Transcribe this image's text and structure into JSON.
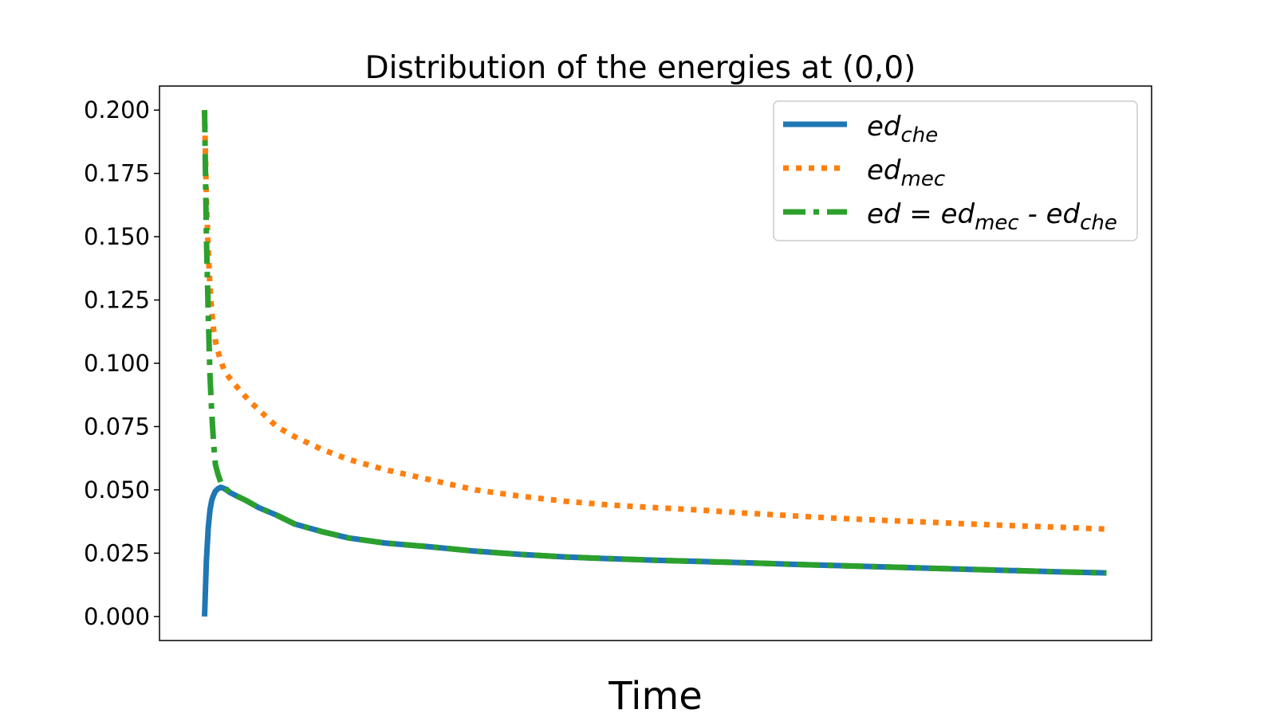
{
  "chart_data": {
    "type": "line",
    "title": "Distribution of the energies at (0,0)",
    "xlabel": "Time",
    "ylabel": "",
    "xlim": [
      -0.05,
      1.05
    ],
    "ylim": [
      -0.0095,
      0.2095
    ],
    "y_ticks": [
      0.0,
      0.025,
      0.05,
      0.075,
      0.1,
      0.125,
      0.15,
      0.175,
      0.2
    ],
    "y_tick_labels": [
      "0.000",
      "0.025",
      "0.050",
      "0.075",
      "0.100",
      "0.125",
      "0.150",
      "0.175",
      "0.200"
    ],
    "x_tick_labels": [],
    "grid": false,
    "legend_position": "top-right",
    "series": [
      {
        "name": "ed_che",
        "label_main": "ed",
        "label_sub": "che",
        "color": "#1f77b4",
        "style": "solid",
        "x": [
          0.0,
          0.002,
          0.004,
          0.006,
          0.008,
          0.01,
          0.012,
          0.015,
          0.018,
          0.022,
          0.028,
          0.036,
          0.045,
          0.06,
          0.08,
          0.1,
          0.13,
          0.16,
          0.2,
          0.25,
          0.3,
          0.35,
          0.4,
          0.45,
          0.5,
          0.55,
          0.6,
          0.65,
          0.7,
          0.75,
          0.8,
          0.85,
          0.9,
          0.95,
          1.0
        ],
        "y": [
          0.0,
          0.022,
          0.035,
          0.042,
          0.046,
          0.048,
          0.0495,
          0.0505,
          0.051,
          0.0505,
          0.049,
          0.0475,
          0.046,
          0.043,
          0.04,
          0.0365,
          0.0335,
          0.031,
          0.029,
          0.0275,
          0.0258,
          0.0245,
          0.0235,
          0.0228,
          0.0222,
          0.0217,
          0.0212,
          0.0206,
          0.0201,
          0.0196,
          0.0191,
          0.0186,
          0.0181,
          0.0176,
          0.0172
        ]
      },
      {
        "name": "ed_mec",
        "label_main": "ed",
        "label_sub": "mec",
        "color": "#ff7f0e",
        "style": "dotted",
        "x": [
          0.0,
          0.002,
          0.004,
          0.006,
          0.008,
          0.01,
          0.013,
          0.017,
          0.022,
          0.03,
          0.04,
          0.05,
          0.065,
          0.08,
          0.1,
          0.13,
          0.16,
          0.2,
          0.25,
          0.3,
          0.35,
          0.4,
          0.45,
          0.5,
          0.55,
          0.6,
          0.65,
          0.7,
          0.75,
          0.8,
          0.85,
          0.9,
          0.95,
          1.0
        ],
        "y": [
          0.2,
          0.165,
          0.145,
          0.13,
          0.12,
          0.113,
          0.107,
          0.102,
          0.097,
          0.093,
          0.089,
          0.085,
          0.08,
          0.075,
          0.071,
          0.066,
          0.062,
          0.058,
          0.054,
          0.05,
          0.0475,
          0.0455,
          0.044,
          0.043,
          0.042,
          0.0408,
          0.0398,
          0.0388,
          0.038,
          0.0373,
          0.0365,
          0.0358,
          0.0352,
          0.0345
        ]
      },
      {
        "name": "ed",
        "label_main": "ed = ed",
        "label_sub": "mec",
        "label_rest": " - ed",
        "label_sub2": "che",
        "color": "#2ca02c",
        "style": "dashdot",
        "x": [
          0.0,
          0.002,
          0.004,
          0.006,
          0.008,
          0.01,
          0.012,
          0.015,
          0.018,
          0.022,
          0.028,
          0.036,
          0.045,
          0.06,
          0.08,
          0.1,
          0.13,
          0.16,
          0.2,
          0.25,
          0.3,
          0.35,
          0.4,
          0.45,
          0.5,
          0.55,
          0.6,
          0.65,
          0.7,
          0.75,
          0.8,
          0.85,
          0.9,
          0.95,
          1.0
        ],
        "y": [
          0.2,
          0.15,
          0.12,
          0.095,
          0.08,
          0.068,
          0.06,
          0.056,
          0.053,
          0.051,
          0.049,
          0.0475,
          0.046,
          0.043,
          0.04,
          0.0365,
          0.0335,
          0.031,
          0.029,
          0.0275,
          0.0258,
          0.0245,
          0.0235,
          0.0228,
          0.0222,
          0.0217,
          0.0212,
          0.0206,
          0.0201,
          0.0196,
          0.0191,
          0.0186,
          0.0181,
          0.0176,
          0.0172
        ]
      }
    ]
  }
}
